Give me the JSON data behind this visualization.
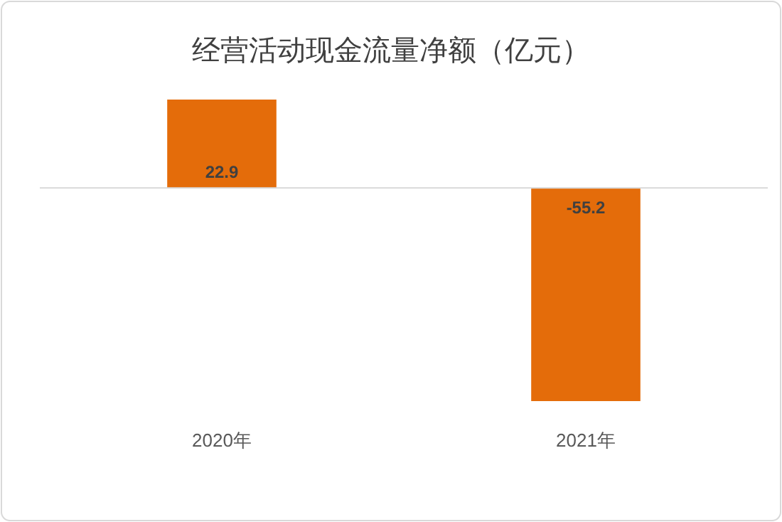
{
  "chart_data": {
    "type": "bar",
    "title": "经营活动现金流量净额（亿元）",
    "categories": [
      "2020年",
      "2021年"
    ],
    "values": [
      22.9,
      -55.2
    ],
    "color": "#e46c0a",
    "data_labels": true
  }
}
